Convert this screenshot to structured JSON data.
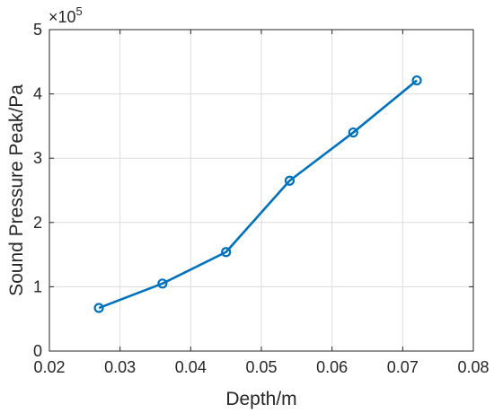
{
  "chart_data": {
    "type": "line",
    "title": "",
    "xlabel": "Depth/m",
    "ylabel": "Sound Pressure Peak/Pa",
    "xlim": [
      0.02,
      0.08
    ],
    "ylim": [
      0,
      5
    ],
    "x_ticks": [
      "0.02",
      "0.03",
      "0.04",
      "0.05",
      "0.06",
      "0.07",
      "0.08"
    ],
    "y_ticks": [
      "0",
      "1",
      "2",
      "3",
      "4",
      "5"
    ],
    "y_multiplier": {
      "base": "×10",
      "exponent": "5"
    },
    "grid": true,
    "series": [
      {
        "color": "#0072bd",
        "marker": "circle",
        "x": [
          0.027,
          0.036,
          0.045,
          0.054,
          0.063,
          0.072
        ],
        "y": [
          0.67,
          1.05,
          1.54,
          2.65,
          3.4,
          4.21
        ]
      }
    ]
  }
}
